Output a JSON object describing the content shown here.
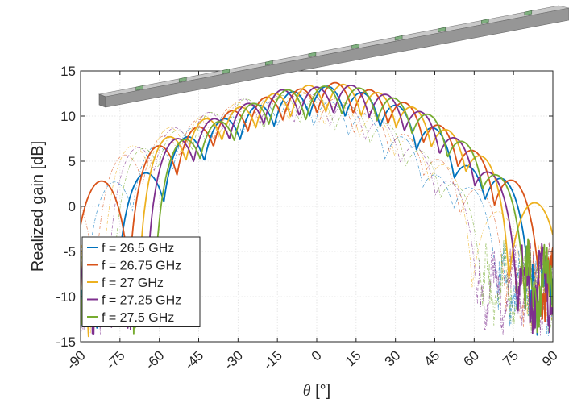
{
  "chart_data": {
    "type": "line",
    "xlabel_symbol": "θ",
    "xlabel_unit": "[°]",
    "ylabel": "Realized gain [dB]",
    "xlim": [
      -90,
      90
    ],
    "ylim": [
      -15,
      15
    ],
    "xticks": [
      -90,
      -75,
      -60,
      -45,
      -30,
      -15,
      0,
      15,
      30,
      45,
      60,
      75,
      90
    ],
    "yticks": [
      -15,
      -10,
      -5,
      0,
      5,
      10,
      15
    ],
    "grid": true,
    "legend_position": "bottom-left",
    "series": [
      {
        "name": "f = 26.5 GHz",
        "color": "#0072BD",
        "main_lobe_theta": -9,
        "main_lobe_gain": 12.7,
        "lobe_peaks": [
          {
            "x": -65,
            "y": 3.7
          },
          {
            "x": -49,
            "y": 7.7
          },
          {
            "x": -35,
            "y": 9.7
          },
          {
            "x": -22,
            "y": 11.2
          },
          {
            "x": -9,
            "y": 12.7
          },
          {
            "x": 4,
            "y": 13.3
          },
          {
            "x": 17,
            "y": 12.6
          },
          {
            "x": 30,
            "y": 11.2
          },
          {
            "x": 44,
            "y": 8.7
          },
          {
            "x": 57,
            "y": 4.5
          },
          {
            "x": 70,
            "y": 3.1
          }
        ]
      },
      {
        "name": "f = 26.75 GHz",
        "color": "#D95319",
        "main_lobe_theta": -6,
        "main_lobe_gain": 13.0,
        "lobe_peaks": [
          {
            "x": -82,
            "y": 2.8
          },
          {
            "x": -60,
            "y": 6.7
          },
          {
            "x": -45,
            "y": 8.8
          },
          {
            "x": -32,
            "y": 10.6
          },
          {
            "x": -19,
            "y": 12.1
          },
          {
            "x": -6,
            "y": 13.0
          },
          {
            "x": 7,
            "y": 13.7
          },
          {
            "x": 20,
            "y": 12.9
          },
          {
            "x": 33,
            "y": 11.5
          },
          {
            "x": 46,
            "y": 9.0
          },
          {
            "x": 59,
            "y": 6.2
          },
          {
            "x": 74,
            "y": 2.9
          }
        ]
      },
      {
        "name": "f = 27 GHz",
        "color": "#EDB120",
        "main_lobe_theta": -3,
        "main_lobe_gain": 13.4,
        "lobe_peaks": [
          {
            "x": -56,
            "y": 7.7
          },
          {
            "x": -42,
            "y": 9.7
          },
          {
            "x": -29,
            "y": 11.0
          },
          {
            "x": -16,
            "y": 12.5
          },
          {
            "x": -3,
            "y": 13.4
          },
          {
            "x": 10,
            "y": 13.5
          },
          {
            "x": 23,
            "y": 12.6
          },
          {
            "x": 36,
            "y": 11.0
          },
          {
            "x": 49,
            "y": 8.5
          },
          {
            "x": 62,
            "y": 5.6
          },
          {
            "x": 83,
            "y": 0.4
          }
        ]
      },
      {
        "name": "f = 27.25 GHz",
        "color": "#7E2F8E",
        "main_lobe_theta": 0,
        "main_lobe_gain": 13.2,
        "lobe_peaks": [
          {
            "x": -53,
            "y": 7.5
          },
          {
            "x": -39,
            "y": 9.7
          },
          {
            "x": -26,
            "y": 11.4
          },
          {
            "x": -13,
            "y": 12.9
          },
          {
            "x": 0,
            "y": 13.2
          },
          {
            "x": 13,
            "y": 13.4
          },
          {
            "x": 26,
            "y": 12.4
          },
          {
            "x": 39,
            "y": 10.5
          },
          {
            "x": 52,
            "y": 7.6
          },
          {
            "x": 65,
            "y": 3.8
          }
        ]
      },
      {
        "name": "f = 27.5 GHz",
        "color": "#77AC30",
        "main_lobe_theta": 3,
        "main_lobe_gain": 13.3,
        "lobe_peaks": [
          {
            "x": -50,
            "y": 7.4
          },
          {
            "x": -37,
            "y": 9.4
          },
          {
            "x": -24,
            "y": 11.4
          },
          {
            "x": -11,
            "y": 12.9
          },
          {
            "x": 3,
            "y": 13.3
          },
          {
            "x": 16,
            "y": 13.1
          },
          {
            "x": 29,
            "y": 12.0
          },
          {
            "x": 42,
            "y": 10.2
          },
          {
            "x": 55,
            "y": 7.2
          },
          {
            "x": 68,
            "y": 3.5
          }
        ]
      }
    ]
  }
}
